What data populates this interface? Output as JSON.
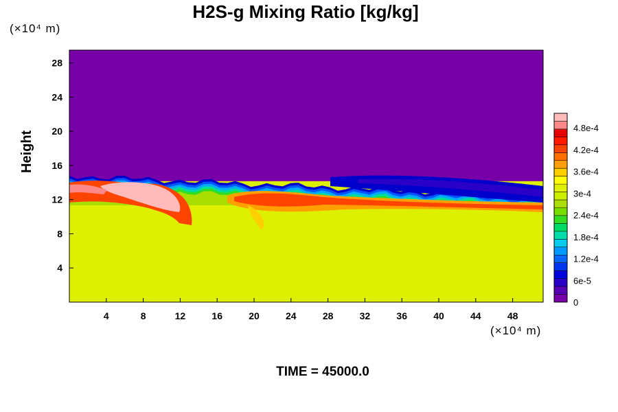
{
  "chart_data": {
    "type": "heatmap",
    "title": "H2S-g Mixing Ratio [kg/kg]",
    "ylabel": "Height",
    "xlabel": "",
    "x_unit_label": "(×10⁴ m)",
    "y_unit_label": "(×10⁴ m)",
    "footer": "TIME = 45000.0",
    "xlim": [
      0,
      51.3
    ],
    "ylim": [
      0,
      29.5
    ],
    "x_ticks": [
      "4",
      "8",
      "12",
      "16",
      "20",
      "24",
      "28",
      "32",
      "36",
      "40",
      "44",
      "48"
    ],
    "y_ticks": [
      "4",
      "8",
      "12",
      "16",
      "20",
      "24",
      "28"
    ],
    "colorbar": {
      "min": 0,
      "max": 0.00052,
      "tick_labels": [
        "0",
        "6e-5",
        "1.2e-4",
        "1.8e-4",
        "2.4e-4",
        "3e-4",
        "3.6e-4",
        "4.2e-4",
        "4.8e-4"
      ],
      "tick_values": [
        0,
        6e-05,
        0.00012,
        0.00018,
        0.00024,
        0.0003,
        0.00036,
        0.00042,
        0.00048
      ],
      "colors": [
        "#7700a8",
        "#5500b4",
        "#2a00c8",
        "#0000dd",
        "#0033ee",
        "#0066ff",
        "#0099ff",
        "#00ccee",
        "#00ddaa",
        "#00dd66",
        "#33dd22",
        "#77dd00",
        "#aadd00",
        "#ccee00",
        "#ddf000",
        "#ffff00",
        "#ffd000",
        "#ffa000",
        "#ff7000",
        "#ff4400",
        "#ff1a00",
        "#e80000",
        "#ff8888",
        "#ffbbbb"
      ]
    },
    "regions": [
      {
        "name": "upper",
        "value": 0,
        "color": "#7700a8"
      },
      {
        "name": "lower",
        "value": 0.00035,
        "color": "#ddf000"
      },
      {
        "name": "layer",
        "value": 0.00046,
        "color": "#ff4400"
      },
      {
        "name": "plume",
        "value": 0.00051,
        "color": "#ffbbbb"
      }
    ]
  }
}
